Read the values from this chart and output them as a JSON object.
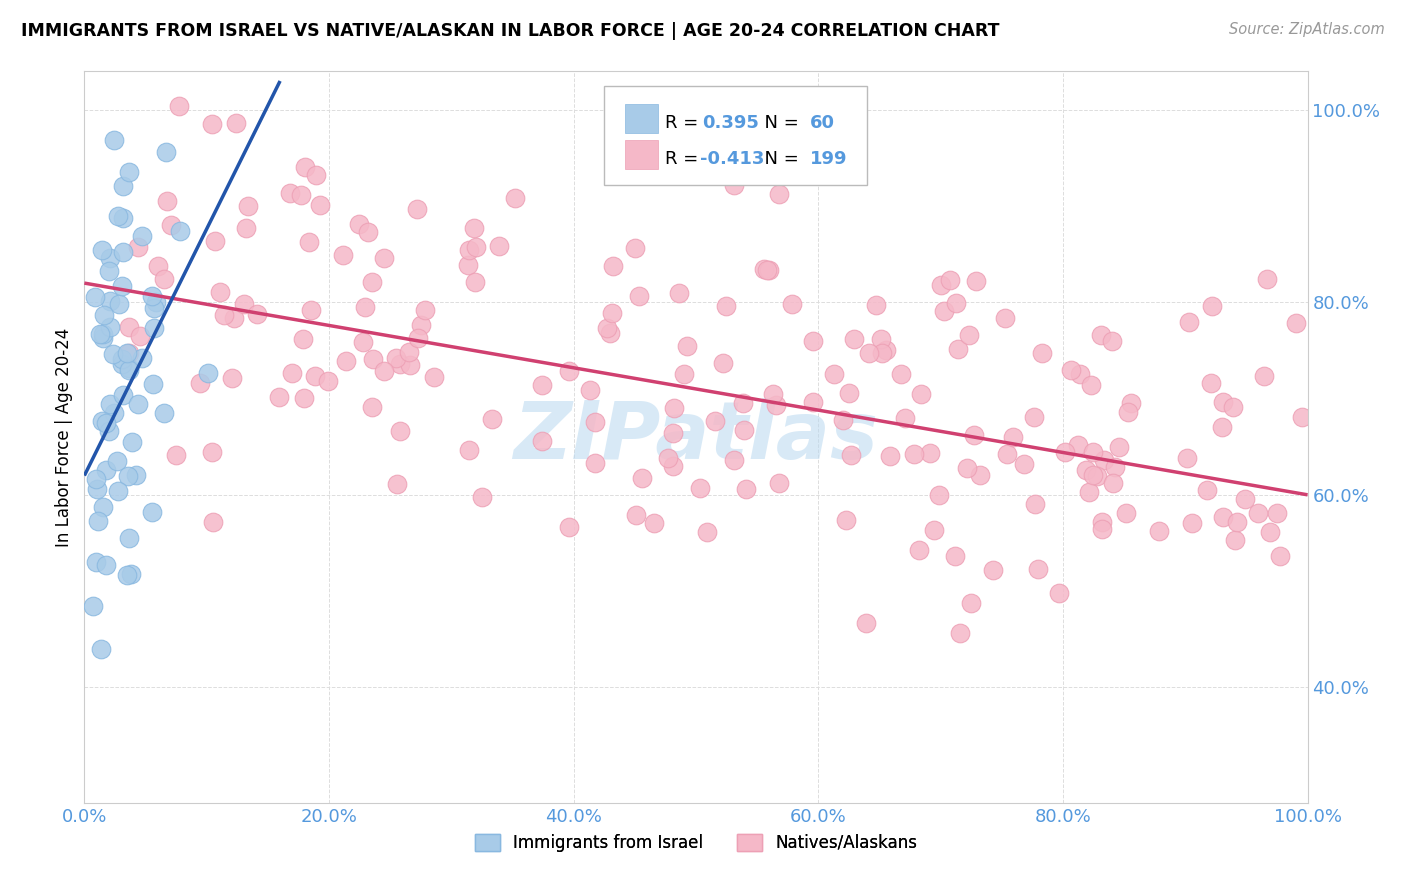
{
  "title": "IMMIGRANTS FROM ISRAEL VS NATIVE/ALASKAN IN LABOR FORCE | AGE 20-24 CORRELATION CHART",
  "source": "Source: ZipAtlas.com",
  "ylabel": "In Labor Force | Age 20-24",
  "x_min": 0.0,
  "x_max": 1.0,
  "y_min": 0.28,
  "y_max": 1.04,
  "blue_R": 0.395,
  "blue_N": 60,
  "pink_R": -0.413,
  "pink_N": 199,
  "blue_color": "#A8CBE8",
  "pink_color": "#F5B8C8",
  "blue_edge_color": "#89B8E0",
  "pink_edge_color": "#EDA0B5",
  "blue_line_color": "#2255AA",
  "pink_line_color": "#D04070",
  "watermark_color": "#B8D8F0",
  "tick_color": "#5599DD",
  "grid_color": "#DDDDDD",
  "spine_color": "#CCCCCC",
  "legend_blue_label": "Immigrants from Israel",
  "legend_pink_label": "Natives/Alaskans",
  "blue_trend_x0": 0.0,
  "blue_trend_x1": 0.16,
  "blue_trend_y0": 0.62,
  "blue_trend_y1": 1.03,
  "pink_trend_x0": 0.0,
  "pink_trend_x1": 1.0,
  "pink_trend_y0": 0.82,
  "pink_trend_y1": 0.6,
  "x_ticks": [
    0.0,
    0.2,
    0.4,
    0.6,
    0.8,
    1.0
  ],
  "y_ticks": [
    0.4,
    0.6,
    0.8,
    1.0
  ],
  "blue_seed": 42,
  "pink_seed": 99
}
